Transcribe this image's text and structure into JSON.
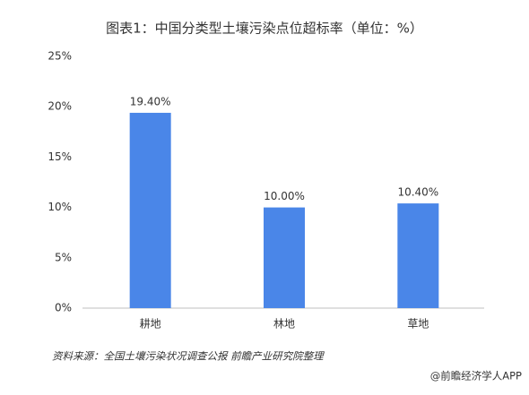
{
  "chart_data": {
    "type": "bar",
    "title": "图表1：中国分类型土壤污染点位超标率（单位：%）",
    "categories": [
      "耕地",
      "林地",
      "草地"
    ],
    "values": [
      19.4,
      10.0,
      10.4
    ],
    "value_labels": [
      "19.40%",
      "10.00%",
      "10.40%"
    ],
    "color": "#4a86e8",
    "ylim": [
      0,
      25
    ],
    "yticks": [
      {
        "value": 0,
        "label": "0%"
      },
      {
        "value": 5,
        "label": "5%"
      },
      {
        "value": 10,
        "label": "10%"
      },
      {
        "value": 15,
        "label": "15%"
      },
      {
        "value": 20,
        "label": "20%"
      },
      {
        "value": 25,
        "label": "25%"
      }
    ],
    "grid": false,
    "source": "资料来源：全国土壤污染状况调查公报 前瞻产业研究院整理",
    "footer": "@前瞻经济学人APP"
  }
}
